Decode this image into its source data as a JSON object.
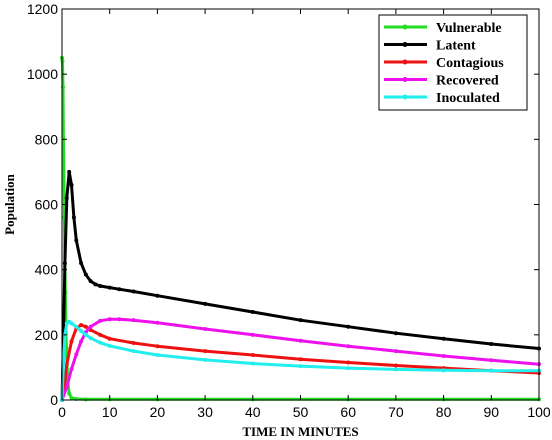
{
  "chart_data": {
    "type": "line",
    "title": "",
    "xlabel": "TIME IN MINUTES",
    "ylabel": "Population",
    "xlim": [
      0,
      100
    ],
    "ylim": [
      0,
      1200
    ],
    "xticks": [
      0,
      10,
      20,
      30,
      40,
      50,
      60,
      70,
      80,
      90,
      100
    ],
    "yticks": [
      0,
      200,
      400,
      600,
      800,
      1000,
      1200
    ],
    "grid": false,
    "legend_position": "top-right",
    "series": [
      {
        "name": "Vulnerable",
        "color": "#22dd22",
        "x": [
          0,
          0.1,
          0.2,
          0.3,
          0.5,
          0.7,
          0.9,
          1.2,
          1.5,
          2,
          3,
          5,
          10,
          20,
          40,
          60,
          80,
          100
        ],
        "y": [
          1050,
          1040,
          960,
          800,
          560,
          330,
          160,
          60,
          20,
          6,
          3,
          2,
          2,
          2,
          2,
          2,
          2,
          2
        ]
      },
      {
        "name": "Latent",
        "color": "#000000",
        "x": [
          0,
          0.3,
          0.6,
          1,
          1.5,
          2,
          2.5,
          3,
          4,
          5,
          6,
          7,
          8,
          10,
          12,
          15,
          20,
          30,
          40,
          50,
          60,
          70,
          80,
          90,
          100
        ],
        "y": [
          0,
          180,
          420,
          620,
          700,
          660,
          560,
          490,
          420,
          385,
          365,
          355,
          350,
          345,
          340,
          333,
          320,
          295,
          270,
          245,
          225,
          205,
          188,
          172,
          158
        ]
      },
      {
        "name": "Contagious",
        "color": "#ee1111",
        "x": [
          0,
          0.5,
          1,
          2,
          3,
          4,
          5,
          6,
          8,
          10,
          15,
          20,
          30,
          40,
          50,
          60,
          70,
          80,
          90,
          100
        ],
        "y": [
          0,
          40,
          110,
          180,
          220,
          230,
          225,
          215,
          200,
          188,
          175,
          165,
          150,
          138,
          125,
          115,
          106,
          98,
          90,
          83
        ]
      },
      {
        "name": "Recovered",
        "color": "#ee11ee",
        "x": [
          0,
          1,
          2,
          3,
          4,
          5,
          6,
          8,
          10,
          12,
          15,
          20,
          30,
          40,
          50,
          60,
          70,
          80,
          90,
          100
        ],
        "y": [
          0,
          40,
          95,
          140,
          180,
          208,
          225,
          243,
          248,
          248,
          245,
          237,
          218,
          200,
          182,
          165,
          150,
          135,
          122,
          110
        ]
      },
      {
        "name": "Inoculated",
        "color": "#22eeee",
        "x": [
          0,
          0.3,
          0.6,
          1,
          1.5,
          2,
          3,
          4,
          5,
          6,
          8,
          10,
          15,
          20,
          30,
          40,
          50,
          60,
          70,
          80,
          90,
          100
        ],
        "y": [
          0,
          110,
          200,
          235,
          240,
          235,
          225,
          212,
          200,
          190,
          176,
          166,
          150,
          138,
          123,
          112,
          104,
          98,
          94,
          91,
          90,
          90
        ]
      }
    ]
  }
}
